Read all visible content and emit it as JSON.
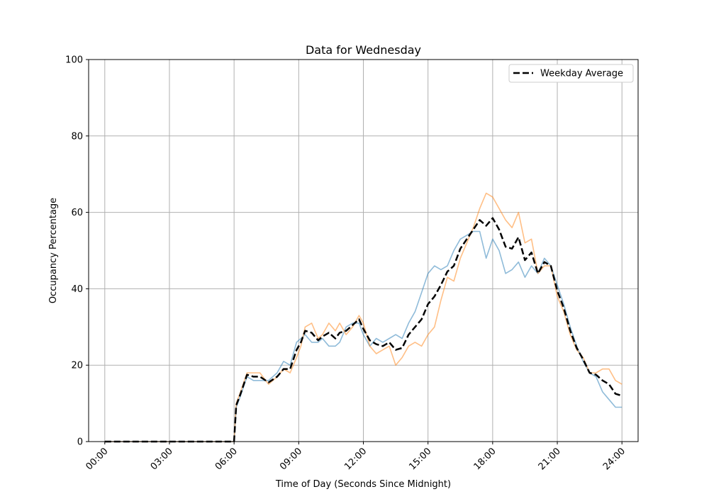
{
  "chart_data": {
    "type": "line",
    "title": "Data for Wednesday",
    "xlabel": "Time of Day (Seconds Since Midnight)",
    "ylabel": "Occupancy Percentage",
    "xlim": [
      -0.75,
      24.75
    ],
    "ylim": [
      0,
      100
    ],
    "x_unit": "hours",
    "x_ticks": [
      0,
      3,
      6,
      9,
      12,
      15,
      18,
      21,
      24
    ],
    "x_tick_labels": [
      "00:00",
      "03:00",
      "06:00",
      "09:00",
      "12:00",
      "15:00",
      "18:00",
      "21:00",
      "24:00"
    ],
    "y_ticks": [
      0,
      20,
      40,
      60,
      80,
      100
    ],
    "y_tick_labels": [
      "0",
      "20",
      "40",
      "60",
      "80",
      "100"
    ],
    "grid": true,
    "legend_position": "top-right",
    "colors": {
      "series_blue": "#1f77b4",
      "series_orange": "#ff7f0e",
      "average": "#000000",
      "grid": "#b0b0b0"
    },
    "series": [
      {
        "color": "#1f77b4",
        "style": "solid",
        "x": [
          0,
          6,
          6.1,
          6.3,
          6.6,
          6.9,
          7.2,
          7.6,
          8.0,
          8.3,
          8.6,
          8.9,
          9.1,
          9.3,
          9.6,
          9.9,
          10.1,
          10.4,
          10.7,
          10.9,
          11.2,
          11.5,
          11.8,
          12.0,
          12.3,
          12.6,
          12.9,
          13.2,
          13.5,
          13.8,
          14.1,
          14.4,
          14.7,
          15.0,
          15.3,
          15.6,
          15.9,
          16.2,
          16.5,
          16.8,
          17.1,
          17.4,
          17.7,
          18.0,
          18.3,
          18.6,
          18.9,
          19.2,
          19.5,
          19.8,
          20.1,
          20.4,
          20.7,
          21.0,
          21.3,
          21.6,
          21.9,
          22.2,
          22.5,
          22.8,
          23.1,
          23.4,
          23.7,
          24.0
        ],
        "y": [
          0,
          0,
          9,
          12,
          17,
          16,
          16,
          16,
          18,
          21,
          20,
          26,
          27,
          28,
          26,
          26,
          27,
          25,
          25,
          26,
          30,
          31,
          31,
          28,
          25,
          27,
          26,
          27,
          28,
          27,
          31,
          34,
          39,
          44,
          46,
          45,
          46,
          50,
          53,
          54,
          55,
          55,
          48,
          53,
          50,
          44,
          45,
          47,
          43,
          46,
          44,
          48,
          46,
          41,
          36,
          30,
          25,
          21,
          18,
          17,
          13,
          11,
          9,
          9
        ]
      },
      {
        "color": "#ff7f0e",
        "style": "solid",
        "x": [
          0,
          6,
          6.1,
          6.3,
          6.6,
          6.9,
          7.2,
          7.6,
          8.0,
          8.3,
          8.6,
          8.9,
          9.1,
          9.3,
          9.6,
          9.9,
          10.1,
          10.4,
          10.7,
          10.9,
          11.2,
          11.5,
          11.8,
          12.0,
          12.3,
          12.6,
          12.9,
          13.2,
          13.5,
          13.8,
          14.1,
          14.4,
          14.7,
          15.0,
          15.3,
          15.6,
          15.9,
          16.2,
          16.5,
          16.8,
          17.1,
          17.4,
          17.7,
          18.0,
          18.3,
          18.6,
          18.9,
          19.2,
          19.5,
          19.8,
          20.1,
          20.4,
          20.7,
          21.0,
          21.3,
          21.6,
          21.9,
          22.2,
          22.5,
          22.8,
          23.1,
          23.4,
          23.7,
          24.0
        ],
        "y": [
          0,
          0,
          10,
          13,
          18,
          18,
          18,
          15,
          17,
          19,
          18,
          22,
          25,
          30,
          31,
          27,
          28,
          31,
          29,
          31,
          28,
          30,
          33,
          31,
          25,
          23,
          24,
          25,
          20,
          22,
          25,
          26,
          25,
          28,
          30,
          37,
          43,
          42,
          48,
          52,
          56,
          61,
          65,
          64,
          61,
          58,
          56,
          60,
          52,
          53,
          44,
          46,
          46,
          38,
          34,
          28,
          24,
          22,
          18,
          18,
          19,
          19,
          16,
          15
        ]
      },
      {
        "name": "Weekday Average",
        "color": "#000000",
        "style": "dashed",
        "x": [
          0,
          6,
          6.1,
          6.3,
          6.6,
          6.9,
          7.2,
          7.6,
          8.0,
          8.3,
          8.6,
          8.9,
          9.1,
          9.3,
          9.6,
          9.9,
          10.1,
          10.4,
          10.7,
          10.9,
          11.2,
          11.5,
          11.8,
          12.0,
          12.3,
          12.6,
          12.9,
          13.2,
          13.5,
          13.8,
          14.1,
          14.4,
          14.7,
          15.0,
          15.3,
          15.6,
          15.9,
          16.2,
          16.5,
          16.8,
          17.1,
          17.4,
          17.7,
          18.0,
          18.3,
          18.6,
          18.9,
          19.2,
          19.5,
          19.8,
          20.1,
          20.4,
          20.7,
          21.0,
          21.3,
          21.6,
          21.9,
          22.2,
          22.5,
          22.8,
          23.1,
          23.4,
          23.7,
          24.0
        ],
        "y": [
          0,
          0,
          9.5,
          12.5,
          17.5,
          17,
          17,
          15.5,
          17,
          19,
          19,
          24,
          26,
          29,
          28.5,
          26.5,
          27.5,
          28.5,
          27,
          28.5,
          29,
          30.5,
          32,
          29.5,
          26.5,
          25.5,
          25,
          26,
          24,
          24.5,
          28,
          30,
          32,
          36,
          38,
          41,
          44.5,
          46,
          50.5,
          53,
          55.5,
          58,
          56.5,
          58.5,
          55.5,
          51,
          50.5,
          53.5,
          47.5,
          49.5,
          44,
          47,
          46,
          39.5,
          35,
          29,
          24.5,
          21.5,
          18,
          17.5,
          16,
          15,
          12.5,
          12
        ]
      }
    ],
    "legend": [
      "Weekday Average"
    ]
  }
}
